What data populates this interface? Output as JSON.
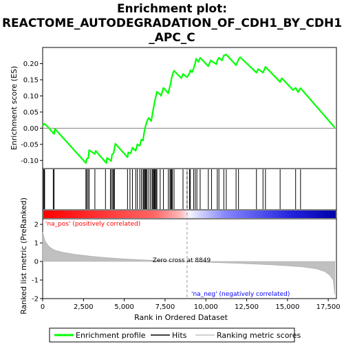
{
  "chart_data": {
    "type": "line",
    "title_lines": [
      "Enrichment plot:",
      "REACTOME_AUTODEGRADATION_OF_CDH1_BY_CDH1",
      "_APC_C"
    ],
    "xlabel": "Rank in Ordered Dataset",
    "ylabel_top": "Enrichment score (ES)",
    "ylabel_bottom": "Ranked list metric (PreRanked)",
    "x_ticks": [
      0,
      2500,
      5000,
      7500,
      10000,
      12500,
      15000,
      17500
    ],
    "x_tick_labels": [
      "0",
      "2,500",
      "5,000",
      "7,500",
      "10,000",
      "12,500",
      "15,000",
      "17,500"
    ],
    "xlim": [
      0,
      18000
    ],
    "es_yticks": [
      0.2,
      0.15,
      0.1,
      0.05,
      0.0,
      -0.05,
      -0.1
    ],
    "es_ytick_labels": [
      "0.20",
      "0.15",
      "0.10",
      "0.05",
      "0.00",
      "-0.05",
      "-0.10"
    ],
    "es_ylim": [
      -0.125,
      0.25
    ],
    "metric_yticks": [
      2,
      1,
      0,
      -1,
      -2
    ],
    "metric_ytick_labels": [
      "2",
      "1",
      "0",
      "-1",
      "-2"
    ],
    "metric_ylim": [
      -2,
      2.3
    ],
    "series": [
      {
        "name": "Enrichment profile",
        "color": "#00ff00",
        "points": [
          [
            0,
            0.008
          ],
          [
            100,
            0.014
          ],
          [
            250,
            0.008
          ],
          [
            700,
            -0.018
          ],
          [
            750,
            -0.002
          ],
          [
            2650,
            -0.108
          ],
          [
            2700,
            -0.095
          ],
          [
            2800,
            -0.092
          ],
          [
            2850,
            -0.068
          ],
          [
            3200,
            -0.08
          ],
          [
            3250,
            -0.07
          ],
          [
            3900,
            -0.108
          ],
          [
            3950,
            -0.092
          ],
          [
            4200,
            -0.102
          ],
          [
            4250,
            -0.082
          ],
          [
            4350,
            -0.077
          ],
          [
            4450,
            -0.048
          ],
          [
            5200,
            -0.09
          ],
          [
            5250,
            -0.075
          ],
          [
            5400,
            -0.078
          ],
          [
            5500,
            -0.06
          ],
          [
            5700,
            -0.07
          ],
          [
            5800,
            -0.05
          ],
          [
            5950,
            -0.055
          ],
          [
            6050,
            -0.035
          ],
          [
            6150,
            -0.038
          ],
          [
            6200,
            -0.018
          ],
          [
            6280,
            0.002
          ],
          [
            6350,
            0.015
          ],
          [
            6450,
            0.028
          ],
          [
            6500,
            0.032
          ],
          [
            6650,
            0.022
          ],
          [
            6750,
            0.05
          ],
          [
            6800,
            0.065
          ],
          [
            6850,
            0.078
          ],
          [
            6900,
            0.09
          ],
          [
            6950,
            0.102
          ],
          [
            7000,
            0.113
          ],
          [
            7200,
            0.105
          ],
          [
            7250,
            0.1
          ],
          [
            7400,
            0.125
          ],
          [
            7700,
            0.108
          ],
          [
            7750,
            0.12
          ],
          [
            7850,
            0.14
          ],
          [
            7900,
            0.155
          ],
          [
            7950,
            0.165
          ],
          [
            8000,
            0.172
          ],
          [
            8050,
            0.178
          ],
          [
            8500,
            0.155
          ],
          [
            8600,
            0.168
          ],
          [
            8850,
            0.158
          ],
          [
            9000,
            0.17
          ],
          [
            9050,
            0.18
          ],
          [
            9150,
            0.173
          ],
          [
            9250,
            0.185
          ],
          [
            9350,
            0.202
          ],
          [
            9400,
            0.215
          ],
          [
            9550,
            0.205
          ],
          [
            9650,
            0.218
          ],
          [
            10150,
            0.192
          ],
          [
            10300,
            0.21
          ],
          [
            10650,
            0.198
          ],
          [
            10700,
            0.21
          ],
          [
            10800,
            0.218
          ],
          [
            11000,
            0.21
          ],
          [
            11100,
            0.225
          ],
          [
            11250,
            0.228
          ],
          [
            11850,
            0.195
          ],
          [
            12000,
            0.213
          ],
          [
            12100,
            0.22
          ],
          [
            13100,
            0.172
          ],
          [
            13200,
            0.183
          ],
          [
            13500,
            0.172
          ],
          [
            13650,
            0.19
          ],
          [
            14550,
            0.143
          ],
          [
            14650,
            0.155
          ],
          [
            15350,
            0.118
          ],
          [
            15500,
            0.125
          ],
          [
            15650,
            0.112
          ],
          [
            15800,
            0.124
          ],
          [
            17900,
            0.002
          ]
        ]
      }
    ],
    "hits": [
      60,
      95,
      120,
      650,
      700,
      2650,
      2700,
      2780,
      2850,
      3200,
      3850,
      4150,
      4220,
      4300,
      4350,
      4400,
      5200,
      5350,
      5500,
      5700,
      5800,
      5950,
      6050,
      6150,
      6200,
      6250,
      6300,
      6350,
      6400,
      6500,
      6600,
      6700,
      6750,
      6800,
      6850,
      6900,
      6950,
      7000,
      7200,
      7400,
      7700,
      7800,
      7850,
      7900,
      7950,
      8050,
      8600,
      8850,
      9000,
      9050,
      9250,
      9350,
      9450,
      9650,
      10150,
      10350,
      10700,
      10800,
      11100,
      11250,
      11850,
      12000,
      13100,
      13500,
      13650,
      14550,
      15500,
      15800
    ],
    "metric_profile": [
      [
        0,
        1.6
      ],
      [
        150,
        1.1
      ],
      [
        400,
        0.8
      ],
      [
        700,
        0.62
      ],
      [
        1200,
        0.5
      ],
      [
        2000,
        0.38
      ],
      [
        3000,
        0.28
      ],
      [
        4000,
        0.2
      ],
      [
        5000,
        0.14
      ],
      [
        6000,
        0.09
      ],
      [
        7000,
        0.05
      ],
      [
        8000,
        0.02
      ],
      [
        8849,
        0.0
      ],
      [
        10000,
        -0.04
      ],
      [
        11000,
        -0.07
      ],
      [
        12000,
        -0.1
      ],
      [
        13000,
        -0.14
      ],
      [
        14000,
        -0.18
      ],
      [
        15000,
        -0.23
      ],
      [
        16000,
        -0.3
      ],
      [
        16800,
        -0.4
      ],
      [
        17300,
        -0.55
      ],
      [
        17600,
        -0.75
      ],
      [
        17800,
        -1.0
      ],
      [
        17900,
        -1.8
      ]
    ],
    "annotations": {
      "pos_label": "'na_pos' (positively correlated)",
      "neg_label": "'na_neg' (negatively correlated)",
      "zero_cross_label": "Zero cross at 8849",
      "zero_cross_x": 8849
    },
    "legend": {
      "placement": "bottom",
      "items": [
        {
          "label": "Enrichment profile",
          "color": "#00ff00"
        },
        {
          "label": "Hits",
          "color": "#000000"
        },
        {
          "label": "Ranking metric scores",
          "color": "#c0c0c0"
        }
      ]
    },
    "colors": {
      "profile": "#00ff00",
      "pos_label": "#ff0000",
      "neg_label": "#0000ff",
      "metric_fill": "#c0c0c0",
      "gradient": [
        "#ff0000",
        "#ff6666",
        "#ffbbbb",
        "#f4f4ff",
        "#8888ff",
        "#2222dd",
        "#0000aa"
      ]
    }
  }
}
